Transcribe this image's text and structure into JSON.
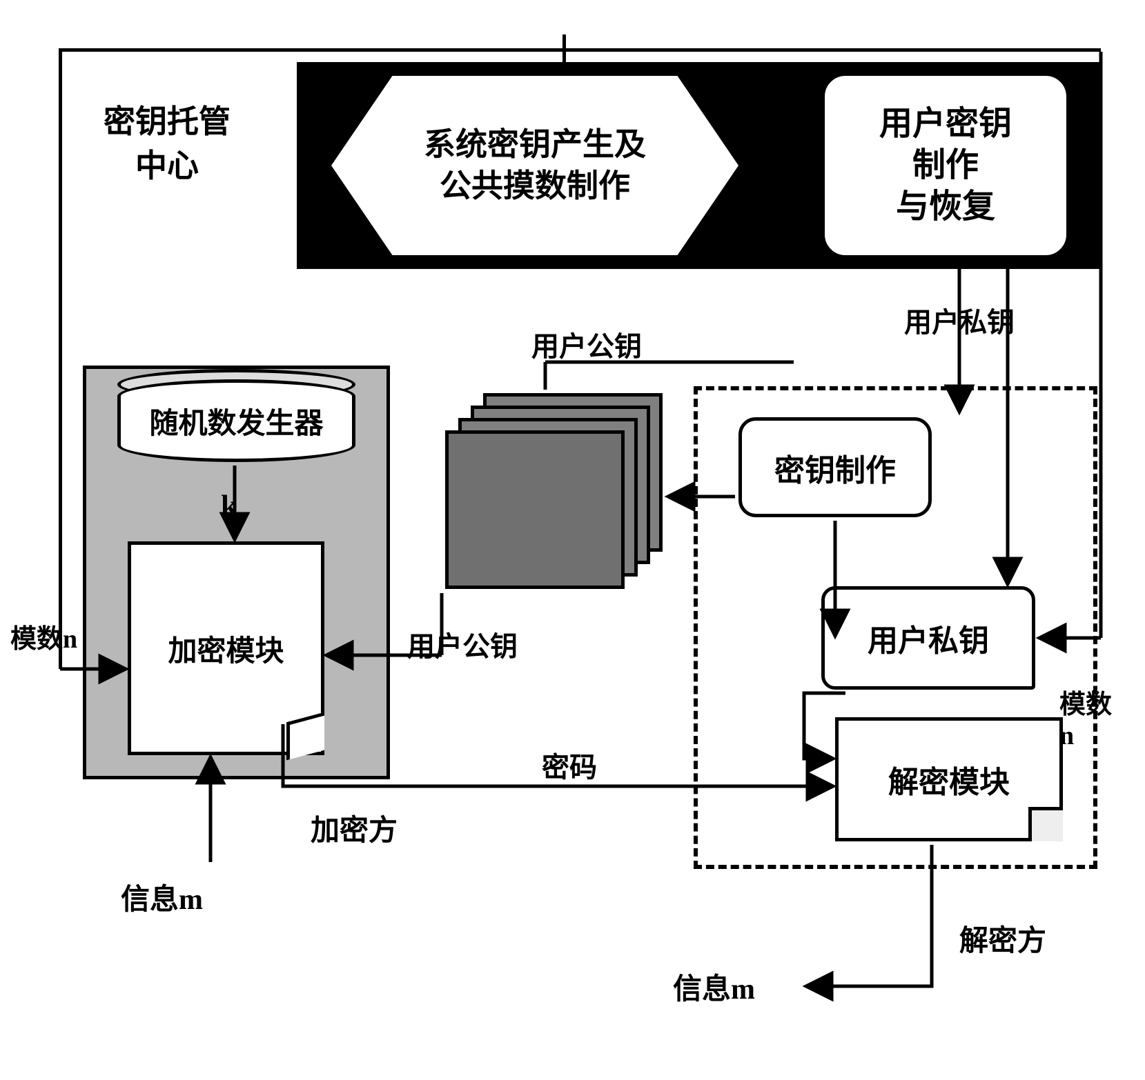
{
  "diagram": {
    "type": "flowchart",
    "background_color": "#ffffff",
    "stroke_color": "#000000",
    "stroke_width": 5,
    "font_family": "SimSun",
    "nodes": {
      "escrow_center_label": "密钥托管\n中心",
      "hexagon_label": "系统密钥产生及\n公共摸数制作",
      "user_key_box_label": "用户密钥\n制作\n与恢复",
      "black_box_color": "#000000",
      "hexagon_bg": "#ffffff",
      "rng_label": "随机数发生器",
      "rng_bg": "#ffffff",
      "k_label": "k",
      "enc_module_label": "加密模块",
      "enc_module_bg": "#ffffff",
      "enc_box_bg": "#b8b8b8",
      "card_stack_color": "#808080",
      "key_making_label": "密钥制作",
      "priv_key_label": "用户私钥",
      "dec_module_label": "解密模块",
      "dec_box_border": "dashed"
    },
    "edge_labels": {
      "user_pubkey": "用户公钥",
      "user_privkey": "用户私钥",
      "modulus_n_left": "模数n",
      "modulus_n_right": "模数n",
      "user_pubkey2": "用户公钥",
      "cipher": "密码",
      "enc_side": "加密方",
      "dec_side": "解密方",
      "info_m_in": "信息m",
      "info_m_out": "信息m"
    },
    "font_sizes": {
      "node_label": 46,
      "edge_label": 40,
      "small_label": 38
    },
    "colors": {
      "black": "#000000",
      "white": "#ffffff",
      "gray_box": "#b8b8b8",
      "gray_card": "#808080",
      "gray_card_front": "#707070"
    }
  }
}
